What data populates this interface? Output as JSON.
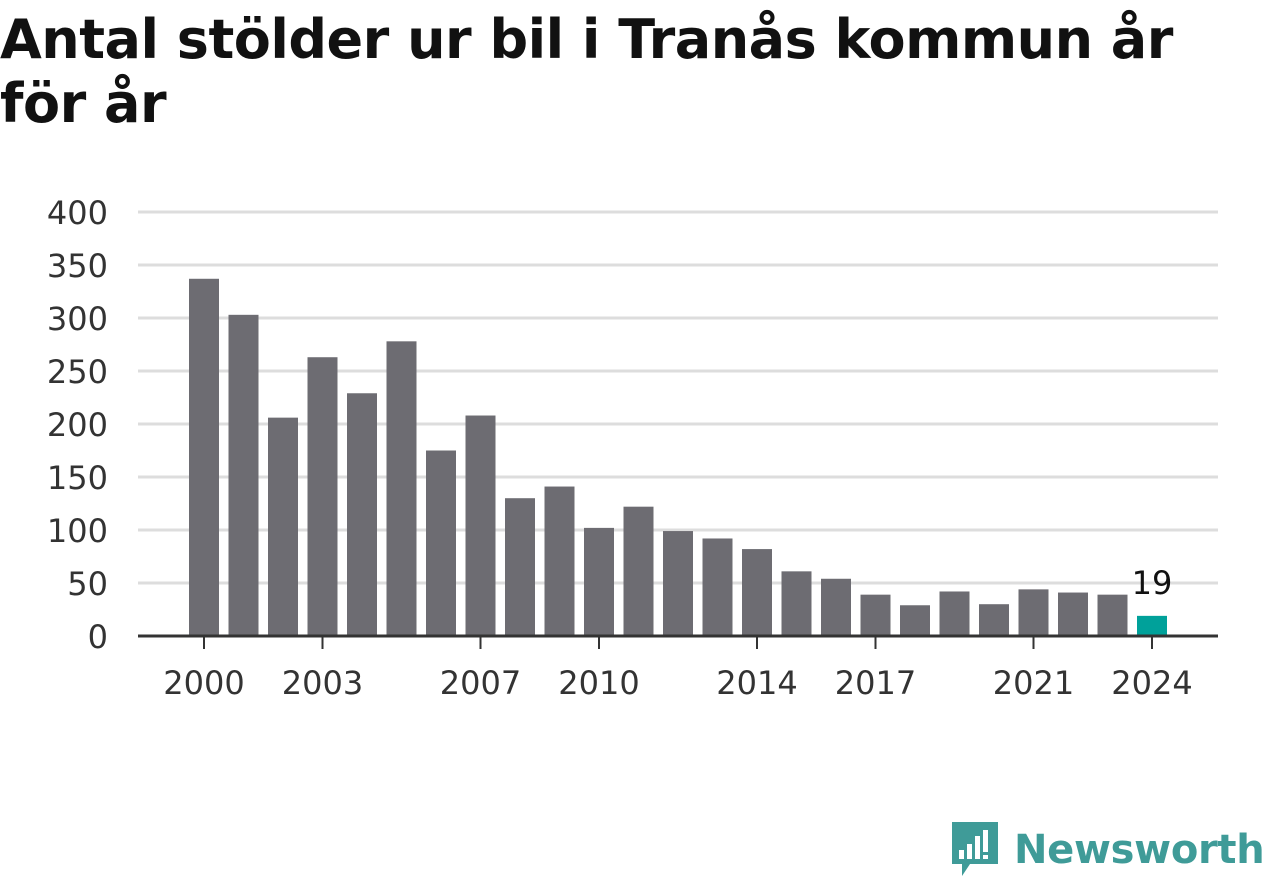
{
  "brand": {
    "name": "Newsworthy",
    "logo_icon": "bar-chart-speech-bubble-icon",
    "color": "#3f9b98"
  },
  "colors": {
    "bar": "#6d6c72",
    "highlight_bar": "#00a19a",
    "grid": "#dddddd",
    "axis": "#333333"
  },
  "chart_data": {
    "type": "bar",
    "title": "Antal stölder ur bil i Tranås kommun år för år",
    "xlabel": "",
    "ylabel": "",
    "ylim": [
      0,
      400
    ],
    "yticks": [
      0,
      50,
      100,
      150,
      200,
      250,
      300,
      350,
      400
    ],
    "grid": true,
    "categories": [
      2000,
      2001,
      2002,
      2003,
      2004,
      2005,
      2006,
      2007,
      2008,
      2009,
      2010,
      2011,
      2012,
      2013,
      2014,
      2015,
      2016,
      2017,
      2018,
      2019,
      2020,
      2021,
      2022,
      2023,
      2024
    ],
    "x_tick_labels": [
      "2000",
      "2003",
      "2007",
      "2010",
      "2014",
      "2017",
      "2021",
      "2024"
    ],
    "values": [
      337,
      303,
      206,
      263,
      229,
      278,
      175,
      208,
      130,
      141,
      102,
      122,
      99,
      92,
      82,
      61,
      54,
      39,
      29,
      42,
      30,
      44,
      41,
      39,
      19
    ],
    "highlight": {
      "category": 2024,
      "label": "19"
    }
  }
}
